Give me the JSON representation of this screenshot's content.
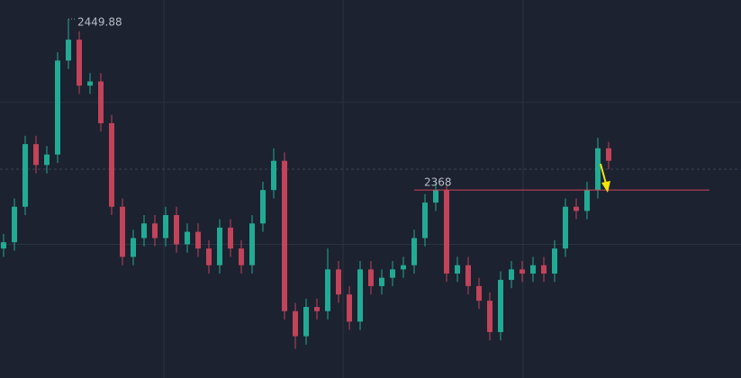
{
  "chart_data": {
    "type": "candlestick",
    "ylim": [
      2278,
      2459
    ],
    "ygrid": [
      2410,
      2342
    ],
    "price_line": 2378,
    "up_color": "#22ab94",
    "down_color": "#c2435a",
    "max_marker": 2449.88,
    "level": {
      "value": 2368,
      "color": "#d0415a"
    },
    "open": [
      2340,
      2343,
      2360,
      2390,
      2380,
      2385,
      2430,
      2440,
      2418,
      2420,
      2400,
      2360,
      2336,
      2345,
      2352,
      2345,
      2356,
      2342,
      2348,
      2340,
      2332,
      2350,
      2340,
      2332,
      2352,
      2368,
      2382,
      2310,
      2298,
      2312,
      2310,
      2330,
      2318,
      2305,
      2330,
      2322,
      2326,
      2330,
      2332,
      2345,
      2362,
      2368,
      2328,
      2332,
      2322,
      2315,
      2300,
      2325,
      2330,
      2328,
      2332,
      2328,
      2340,
      2360,
      2358,
      2368,
      2388
    ],
    "high": [
      2347,
      2364,
      2394,
      2394,
      2389,
      2434,
      2449.88,
      2444,
      2424,
      2424,
      2404,
      2364,
      2349,
      2356,
      2356,
      2360,
      2360,
      2352,
      2352,
      2344,
      2354,
      2354,
      2344,
      2356,
      2372,
      2388,
      2386,
      2314,
      2316,
      2316,
      2340,
      2334,
      2322,
      2334,
      2334,
      2330,
      2334,
      2336,
      2349,
      2366,
      2372,
      2370,
      2336,
      2336,
      2326,
      2319,
      2329,
      2334,
      2334,
      2336,
      2336,
      2344,
      2364,
      2364,
      2372,
      2393,
      2391
    ],
    "low": [
      2336,
      2339,
      2356,
      2376,
      2376,
      2381,
      2426,
      2414,
      2414,
      2396,
      2356,
      2332,
      2332,
      2341,
      2341,
      2341,
      2338,
      2338,
      2336,
      2328,
      2328,
      2336,
      2328,
      2328,
      2348,
      2364,
      2306,
      2292,
      2294,
      2306,
      2306,
      2314,
      2301,
      2301,
      2318,
      2318,
      2322,
      2326,
      2328,
      2341,
      2358,
      2324,
      2324,
      2318,
      2311,
      2296,
      2296,
      2321,
      2324,
      2324,
      2324,
      2324,
      2336,
      2354,
      2354,
      2364,
      2378
    ],
    "close": [
      2343,
      2360,
      2390,
      2380,
      2385,
      2430,
      2440,
      2418,
      2420,
      2400,
      2360,
      2336,
      2345,
      2352,
      2345,
      2356,
      2342,
      2348,
      2340,
      2332,
      2350,
      2340,
      2332,
      2352,
      2368,
      2382,
      2310,
      2298,
      2312,
      2310,
      2330,
      2318,
      2305,
      2330,
      2322,
      2326,
      2330,
      2332,
      2345,
      2362,
      2368,
      2328,
      2332,
      2322,
      2315,
      2300,
      2325,
      2330,
      2328,
      2332,
      2328,
      2340,
      2360,
      2358,
      2368,
      2388,
      2382
    ]
  }
}
